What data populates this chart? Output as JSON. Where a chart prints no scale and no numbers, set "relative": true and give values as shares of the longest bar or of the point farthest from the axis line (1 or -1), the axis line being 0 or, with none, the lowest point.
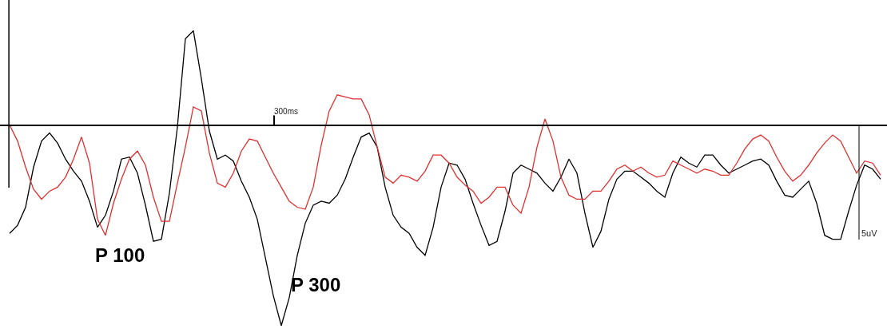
{
  "chart_data": {
    "type": "line",
    "relative": true,
    "marker": "none",
    "line_style": "solid",
    "categories": [
      null,
      null,
      null,
      null,
      null,
      null,
      null,
      null,
      null,
      null,
      null,
      null,
      null,
      null,
      null,
      null,
      null,
      null,
      null,
      null,
      null,
      null,
      null,
      null,
      null,
      null,
      null,
      null,
      null,
      null,
      null,
      null,
      null,
      null,
      null,
      null,
      null,
      null,
      null,
      null,
      null,
      null,
      null,
      null,
      null,
      null,
      null,
      null,
      null,
      null,
      null,
      null,
      null,
      null,
      null,
      null,
      null,
      null,
      null,
      null,
      null,
      null,
      null,
      null,
      null,
      null,
      null,
      null,
      null,
      null,
      null,
      null,
      null,
      null,
      null,
      null,
      null,
      null,
      null,
      null,
      null,
      null,
      null,
      null,
      null,
      null,
      null,
      null,
      null,
      null,
      null,
      null,
      null,
      null,
      null,
      null,
      null,
      null,
      null,
      null,
      null,
      null,
      null,
      null,
      null,
      null,
      null,
      null,
      null,
      null
    ],
    "annotations": [
      "P 100",
      "P 300",
      "5uV",
      "300ms"
    ],
    "series": [
      {
        "color": "#000000",
        "values": [
          -0.54,
          -0.5,
          -0.41,
          -0.21,
          -0.08,
          -0.04,
          -0.09,
          -0.17,
          -0.23,
          -0.28,
          -0.38,
          -0.51,
          -0.45,
          -0.33,
          -0.17,
          -0.16,
          -0.24,
          -0.4,
          -0.58,
          -0.57,
          -0.34,
          -0.01,
          0.43,
          0.47,
          0.23,
          -0.03,
          -0.17,
          -0.15,
          -0.18,
          -0.28,
          -0.36,
          -0.47,
          -0.66,
          -0.85,
          -1,
          -0.86,
          -0.65,
          -0.49,
          -0.4,
          -0.38,
          -0.39,
          -0.35,
          -0.27,
          -0.16,
          -0.06,
          -0.04,
          -0.11,
          -0.31,
          -0.45,
          -0.51,
          -0.54,
          -0.61,
          -0.65,
          -0.51,
          -0.31,
          -0.19,
          -0.2,
          -0.27,
          -0.39,
          -0.5,
          -0.6,
          -0.58,
          -0.43,
          -0.24,
          -0.2,
          -0.22,
          -0.24,
          -0.29,
          -0.33,
          -0.26,
          -0.17,
          -0.24,
          -0.44,
          -0.61,
          -0.53,
          -0.37,
          -0.27,
          -0.23,
          -0.23,
          -0.26,
          -0.29,
          -0.33,
          -0.36,
          -0.24,
          -0.16,
          -0.19,
          -0.21,
          -0.15,
          -0.15,
          -0.2,
          -0.24,
          -0.22,
          -0.2,
          -0.18,
          -0.17,
          -0.2,
          -0.28,
          -0.35,
          -0.36,
          -0.32,
          -0.28,
          -0.39,
          -0.55,
          -0.57,
          -0.57,
          -0.43,
          -0.3,
          -0.2,
          -0.22,
          -0.27
        ]
      },
      {
        "color": "#e03030",
        "values": [
          0,
          -0.08,
          -0.21,
          -0.32,
          -0.37,
          -0.33,
          -0.31,
          -0.26,
          -0.17,
          -0.06,
          -0.19,
          -0.47,
          -0.55,
          -0.39,
          -0.27,
          -0.17,
          -0.13,
          -0.2,
          -0.36,
          -0.48,
          -0.48,
          -0.29,
          -0.11,
          0.09,
          0.07,
          -0.14,
          -0.29,
          -0.31,
          -0.24,
          -0.13,
          -0.07,
          -0.08,
          -0.16,
          -0.24,
          -0.31,
          -0.38,
          -0.41,
          -0.42,
          -0.31,
          -0.1,
          0.07,
          0.15,
          0.14,
          0.13,
          0.13,
          0.05,
          -0.11,
          -0.26,
          -0.29,
          -0.25,
          -0.26,
          -0.28,
          -0.23,
          -0.15,
          -0.15,
          -0.19,
          -0.26,
          -0.3,
          -0.33,
          -0.39,
          -0.36,
          -0.31,
          -0.31,
          -0.4,
          -0.44,
          -0.31,
          -0.11,
          0.03,
          -0.08,
          -0.26,
          -0.35,
          -0.37,
          -0.37,
          -0.33,
          -0.33,
          -0.28,
          -0.22,
          -0.2,
          -0.23,
          -0.21,
          -0.24,
          -0.26,
          -0.25,
          -0.18,
          -0.2,
          -0.22,
          -0.24,
          -0.22,
          -0.23,
          -0.25,
          -0.25,
          -0.19,
          -0.12,
          -0.07,
          -0.05,
          -0.08,
          -0.16,
          -0.23,
          -0.28,
          -0.25,
          -0.2,
          -0.14,
          -0.09,
          -0.05,
          -0.08,
          -0.16,
          -0.24,
          -0.18,
          -0.19,
          -0.25
        ]
      }
    ]
  }
}
